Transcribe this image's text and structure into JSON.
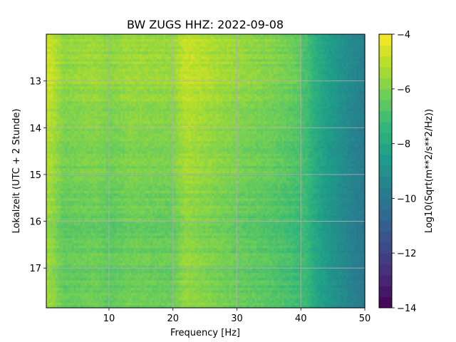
{
  "chart_data": {
    "type": "heatmap",
    "title": "BW ZUGS  HHZ: 2022-09-08",
    "xlabel": "Frequency [Hz]",
    "ylabel": "Lokalzeit (UTC + 2 Stunde)",
    "colorbar_label": "Log10(Sqrt(m**2/s**2/Hz))",
    "xlim": [
      0.2,
      50
    ],
    "ylim": [
      12.0,
      17.85
    ],
    "x_ticks": [
      10,
      20,
      30,
      40,
      50
    ],
    "x_tick_labels": [
      "10",
      "20",
      "30",
      "40",
      "50"
    ],
    "y_ticks": [
      13,
      14,
      15,
      16,
      17
    ],
    "y_tick_labels": [
      "13",
      "14",
      "15",
      "16",
      "17"
    ],
    "y_inverted": true,
    "color_range": [
      -14,
      -4
    ],
    "colorbar_ticks": [
      -4,
      -6,
      -8,
      -10,
      -12,
      -14
    ],
    "colorbar_tick_labels": [
      "−4",
      "−6",
      "−8",
      "−10",
      "−12",
      "−14"
    ],
    "colormap": "viridis",
    "grid": true,
    "frequency_profile": {
      "x": [
        0.2,
        1,
        3,
        8,
        10,
        13,
        20,
        22,
        30,
        35,
        38,
        40,
        41,
        42,
        44,
        46,
        48,
        50
      ],
      "level": [
        -5.2,
        -5.4,
        -6.2,
        -6.0,
        -6.3,
        -6.0,
        -6.1,
        -5.4,
        -6.1,
        -6.4,
        -6.7,
        -7.0,
        -7.2,
        -7.8,
        -8.5,
        -9.0,
        -9.5,
        -9.9
      ]
    },
    "hour_band_profile": {
      "hours": [
        12.0,
        13.0,
        14.0,
        15.0,
        15.5,
        16.0,
        17.0,
        17.85
      ],
      "offset": [
        0.5,
        0.5,
        0.2,
        0.0,
        -0.2,
        -0.3,
        -0.3,
        -0.2
      ]
    }
  }
}
